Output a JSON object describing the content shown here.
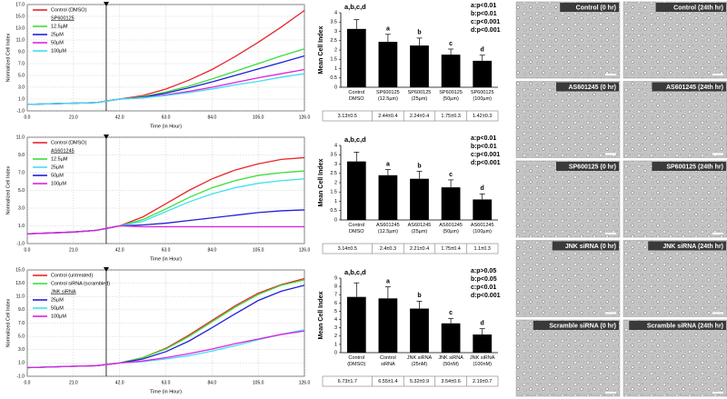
{
  "chart_data": [
    {
      "type": "line",
      "y_label": "Normalized Cell Index",
      "x_label": "Time (in Hour)",
      "x": [
        0,
        10.5,
        21,
        31.5,
        42,
        52.5,
        63,
        73.5,
        84,
        94.5,
        105,
        115.5,
        126
      ],
      "xlim": [
        0,
        126
      ],
      "xticks": [
        {
          "value": 0,
          "label": "0.0"
        },
        {
          "value": 21,
          "label": "21.0"
        },
        {
          "value": 42,
          "label": "42.0"
        },
        {
          "value": 63,
          "label": "63.0"
        },
        {
          "value": 84,
          "label": "84.0"
        },
        {
          "value": 105,
          "label": "105.0"
        },
        {
          "value": 126,
          "label": "126.0"
        }
      ],
      "ylim": [
        -1,
        17
      ],
      "yticks": [
        {
          "value": -1,
          "label": "-1.0"
        },
        {
          "value": 1,
          "label": "1.0"
        },
        {
          "value": 3,
          "label": "3.0"
        },
        {
          "value": 5,
          "label": "5.0"
        },
        {
          "value": 7,
          "label": "7.0"
        },
        {
          "value": 9,
          "label": "9.0"
        },
        {
          "value": 11,
          "label": "11.0"
        },
        {
          "value": 13,
          "label": "13.0"
        },
        {
          "value": 15,
          "label": "15.0"
        },
        {
          "value": 17,
          "label": "17.0"
        }
      ],
      "grid": true,
      "series": [
        {
          "name": "Control (DMSO)",
          "color": "#e8262b",
          "values": [
            0.1,
            0.2,
            0.3,
            0.4,
            1.0,
            1.6,
            2.7,
            4.2,
            6.0,
            8.2,
            10.6,
            13.2,
            16.0
          ]
        },
        {
          "name": "12.5µM",
          "group": "SP600125",
          "color": "#3adf3a",
          "values": [
            0.1,
            0.2,
            0.3,
            0.4,
            1.0,
            1.4,
            2.2,
            3.2,
            4.4,
            5.7,
            7.0,
            8.3,
            9.5
          ]
        },
        {
          "name": "25µM",
          "group": "SP600125",
          "color": "#2020d8",
          "values": [
            0.1,
            0.2,
            0.3,
            0.4,
            1.0,
            1.3,
            2.0,
            2.9,
            3.9,
            5.0,
            6.1,
            7.2,
            8.3
          ]
        },
        {
          "name": "50µM",
          "group": "SP600125",
          "color": "#e020e0",
          "values": [
            0.1,
            0.2,
            0.3,
            0.4,
            1.0,
            1.2,
            1.7,
            2.3,
            3.0,
            3.8,
            4.6,
            5.3,
            6.0
          ]
        },
        {
          "name": "100µM",
          "group": "SP600125",
          "color": "#40e0f0",
          "values": [
            0.1,
            0.2,
            0.3,
            0.4,
            1.0,
            1.2,
            1.6,
            2.1,
            2.7,
            3.4,
            4.0,
            4.7,
            5.3
          ]
        }
      ]
    },
    {
      "type": "bar",
      "y_label": "Mean Cell Index",
      "annotation": "a,b,c,d",
      "stats": [
        "a:p<0.01",
        "b:p<0.01",
        "c:p<0.001",
        "d:p<0.001"
      ],
      "categories": [
        "Control DMSO",
        "SP600125 (12.5µm)",
        "SP600125 (25µm)",
        "SP600125 (50µm)",
        "SP600125 (100µm)"
      ],
      "values": [
        3.13,
        2.44,
        2.24,
        1.75,
        1.42
      ],
      "errors": [
        0.5,
        0.4,
        0.4,
        0.3,
        0.3
      ],
      "value_labels": [
        "3.13±0.5",
        "2.44±0.4",
        "2.24±0.4",
        "1.75±0.3",
        "1.42±0.3"
      ],
      "bar_letters": [
        null,
        "a",
        "b",
        "c",
        "d"
      ],
      "color": "#000000",
      "ylim": [
        0,
        4
      ],
      "yticks": [
        0,
        0.5,
        1,
        1.5,
        2,
        2.5,
        3,
        3.5,
        4
      ]
    },
    {
      "type": "line",
      "y_label": "Normalized Cell Index",
      "x_label": "Time (in Hour)",
      "x": [
        0,
        10.5,
        21,
        31.5,
        42,
        52.5,
        63,
        73.5,
        84,
        94.5,
        105,
        115.5,
        126
      ],
      "xlim": [
        0,
        126
      ],
      "xticks": [
        {
          "value": 0,
          "label": "0.0"
        },
        {
          "value": 21,
          "label": "21.0"
        },
        {
          "value": 42,
          "label": "42.0"
        },
        {
          "value": 63,
          "label": "63.0"
        },
        {
          "value": 84,
          "label": "84.0"
        },
        {
          "value": 105,
          "label": "105.0"
        },
        {
          "value": 126,
          "label": "126.0"
        }
      ],
      "ylim": [
        -1,
        11
      ],
      "yticks": [
        {
          "value": -1,
          "label": "-1.0"
        },
        {
          "value": 1,
          "label": "1.0"
        },
        {
          "value": 3,
          "label": "3.0"
        },
        {
          "value": 5,
          "label": "5.0"
        },
        {
          "value": 7,
          "label": "7.0"
        },
        {
          "value": 9,
          "label": "9.0"
        },
        {
          "value": 11,
          "label": "11.0"
        }
      ],
      "grid": true,
      "series": [
        {
          "name": "Control (DMSO)",
          "color": "#e8262b",
          "values": [
            0.1,
            0.2,
            0.3,
            0.5,
            1.0,
            2.0,
            3.5,
            5.0,
            6.3,
            7.3,
            8.0,
            8.5,
            8.7
          ]
        },
        {
          "name": "12.5µM",
          "group": "AS601245",
          "color": "#3adf3a",
          "values": [
            0.1,
            0.2,
            0.3,
            0.5,
            1.0,
            1.7,
            2.9,
            4.2,
            5.3,
            6.1,
            6.7,
            7.0,
            7.2
          ]
        },
        {
          "name": "25µM",
          "group": "AS601245",
          "color": "#40e0f0",
          "values": [
            0.1,
            0.2,
            0.3,
            0.5,
            1.0,
            1.5,
            2.6,
            3.7,
            4.6,
            5.3,
            5.8,
            6.1,
            6.3
          ]
        },
        {
          "name": "50µM",
          "group": "AS601245",
          "color": "#2020d8",
          "values": [
            0.1,
            0.2,
            0.3,
            0.5,
            1.0,
            1.1,
            1.3,
            1.6,
            1.9,
            2.2,
            2.5,
            2.7,
            2.8
          ]
        },
        {
          "name": "100µM",
          "group": "AS601245",
          "color": "#e020e0",
          "values": [
            0.1,
            0.2,
            0.3,
            0.5,
            1.0,
            0.9,
            0.9,
            0.9,
            0.9,
            0.9,
            0.9,
            0.9,
            0.9
          ]
        }
      ]
    },
    {
      "type": "bar",
      "y_label": "Mean Cell Index",
      "annotation": "a,b,c,d",
      "stats": [
        "a:p<0.01",
        "b:p<0.01",
        "c:p<0.001",
        "d:p<0.001"
      ],
      "categories": [
        "Control DMSO",
        "AS601245 (12.5µm)",
        "AS601245 (25µm)",
        "AS601245 (50µm)",
        "AS601245 (100µm)"
      ],
      "values": [
        3.14,
        2.4,
        2.21,
        1.75,
        1.1
      ],
      "errors": [
        0.5,
        0.3,
        0.4,
        0.4,
        0.3
      ],
      "value_labels": [
        "3.14±0.5",
        "2.4±0.3",
        "2.21±0.4",
        "1.75±0.4",
        "1.1±0.3"
      ],
      "bar_letters": [
        null,
        "a",
        "b",
        "c",
        "d"
      ],
      "color": "#000000",
      "ylim": [
        0,
        4
      ],
      "yticks": [
        0,
        0.5,
        1,
        1.5,
        2,
        2.5,
        3,
        3.5,
        4
      ]
    },
    {
      "type": "line",
      "y_label": "Normalized Cell Index",
      "x_label": "Time (in Hour)",
      "x": [
        0,
        10.5,
        21,
        31.5,
        42,
        52.5,
        63,
        73.5,
        84,
        94.5,
        105,
        115.5,
        126
      ],
      "xlim": [
        0,
        126
      ],
      "xticks": [
        {
          "value": 0,
          "label": "0.0"
        },
        {
          "value": 21,
          "label": "21.0"
        },
        {
          "value": 42,
          "label": "42.0"
        },
        {
          "value": 63,
          "label": "63.0"
        },
        {
          "value": 84,
          "label": "84.0"
        },
        {
          "value": 105,
          "label": "105.0"
        },
        {
          "value": 126,
          "label": "126.0"
        }
      ],
      "ylim": [
        -1,
        15
      ],
      "yticks": [
        {
          "value": -1,
          "label": "-1.0"
        },
        {
          "value": 1,
          "label": "1.0"
        },
        {
          "value": 3,
          "label": "3.0"
        },
        {
          "value": 5,
          "label": "5.0"
        },
        {
          "value": 7,
          "label": "7.0"
        },
        {
          "value": 9,
          "label": "9.0"
        },
        {
          "value": 11,
          "label": "11.0"
        },
        {
          "value": 13,
          "label": "13.0"
        },
        {
          "value": 15,
          "label": "15.0"
        }
      ],
      "grid": true,
      "series": [
        {
          "name": "Control (untreated)",
          "color": "#e8262b",
          "values": [
            0.3,
            0.4,
            0.5,
            0.6,
            1.0,
            1.8,
            3.2,
            5.2,
            7.4,
            9.6,
            11.5,
            12.8,
            13.7
          ]
        },
        {
          "name": "Control siRNA (scrambled)",
          "color": "#3adf3a",
          "values": [
            0.3,
            0.4,
            0.5,
            0.6,
            1.0,
            1.8,
            3.1,
            5.0,
            7.2,
            9.4,
            11.3,
            12.7,
            13.5
          ]
        },
        {
          "name": "25µM",
          "group": "JNK siRNA",
          "color": "#2020d8",
          "values": [
            0.3,
            0.4,
            0.5,
            0.6,
            1.0,
            1.6,
            2.7,
            4.3,
            6.3,
            8.4,
            10.4,
            11.8,
            12.7
          ]
        },
        {
          "name": "50µM",
          "group": "JNK siRNA",
          "color": "#40e0f0",
          "values": [
            0.3,
            0.4,
            0.5,
            0.6,
            1.0,
            1.2,
            1.6,
            2.1,
            2.8,
            3.6,
            4.5,
            5.3,
            6.0
          ]
        },
        {
          "name": "100µM",
          "group": "JNK siRNA",
          "color": "#e020e0",
          "values": [
            0.3,
            0.4,
            0.5,
            0.6,
            1.0,
            1.3,
            1.8,
            2.4,
            3.1,
            3.9,
            4.6,
            5.3,
            5.8
          ]
        }
      ]
    },
    {
      "type": "bar",
      "y_label": "Mean Cell Index",
      "annotation": "a,b,c,d",
      "stats": [
        "a:p>0.05",
        "b:p<0.05",
        "c:p<0.01",
        "d:p<0.001"
      ],
      "categories": [
        "Control (DMSO)",
        "Control siRNA",
        "JNK siRNA (25nM)",
        "JNK siRNA (50nM)",
        "JNK siRNA (100nM)"
      ],
      "values": [
        6.73,
        6.55,
        5.32,
        3.54,
        2.19
      ],
      "errors": [
        1.7,
        1.4,
        0.9,
        0.6,
        0.7
      ],
      "value_labels": [
        "6.73±1.7",
        "6.55±1.4",
        "5.32±0.9",
        "3.54±0.6",
        "2.19±0.7"
      ],
      "bar_letters": [
        null,
        "a",
        "b",
        "c",
        "d"
      ],
      "color": "#000000",
      "ylim": [
        0,
        9
      ],
      "yticks": [
        0,
        1,
        2,
        3,
        4,
        5,
        6,
        7,
        8,
        9
      ]
    }
  ],
  "micrographs": [
    "Control (0 hr)",
    "Control (24th hr)",
    "AS601245 (0 hr)",
    "AS601245 (24th hr)",
    "SP600125 (0 hr)",
    "SP600125 (24th hr)",
    "JNK siRNA (0 hr)",
    "JNK siRNA (24th hr)",
    "Scramble siRNA (0 hr)",
    "Scramble siRNA (24th hr)"
  ]
}
